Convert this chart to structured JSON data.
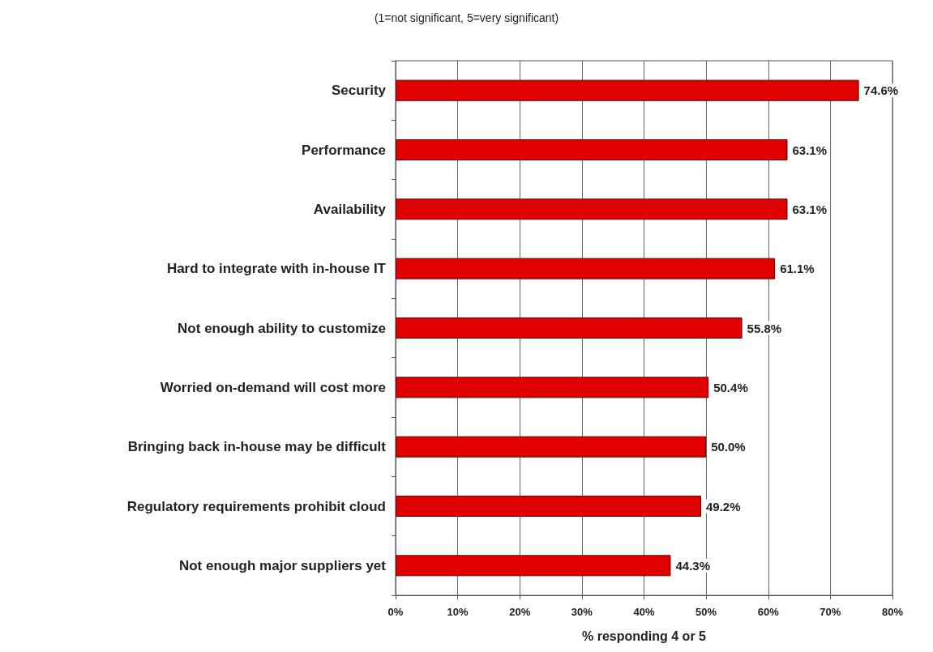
{
  "chart_data": {
    "type": "bar",
    "orientation": "horizontal",
    "subtitle": "(1=not significant, 5=very significant)",
    "xlabel": "% responding 4 or 5",
    "categories": [
      "Security",
      "Performance",
      "Availability",
      "Hard to integrate with in-house IT",
      "Not enough ability to customize",
      "Worried on-demand will cost more",
      "Bringing back in-house may be difficult",
      "Regulatory requirements prohibit cloud",
      "Not enough major suppliers yet"
    ],
    "values": [
      74.6,
      63.1,
      63.1,
      61.1,
      55.8,
      50.4,
      50.0,
      49.2,
      44.3
    ],
    "value_labels": [
      "74.6%",
      "63.1%",
      "63.1%",
      "61.1%",
      "55.8%",
      "50.4%",
      "50.0%",
      "49.2%",
      "44.3%"
    ],
    "color": "#e00000",
    "xlim": [
      0,
      80
    ],
    "xticks": [
      {
        "value": 0,
        "label": "0%"
      },
      {
        "value": 10,
        "label": "10%"
      },
      {
        "value": 20,
        "label": "20%"
      },
      {
        "value": 30,
        "label": "30%"
      },
      {
        "value": 40,
        "label": "40%"
      },
      {
        "value": 50,
        "label": "50%"
      },
      {
        "value": 60,
        "label": "60%"
      },
      {
        "value": 70,
        "label": "70%"
      },
      {
        "value": 80,
        "label": "80%"
      }
    ],
    "grid": "x"
  }
}
